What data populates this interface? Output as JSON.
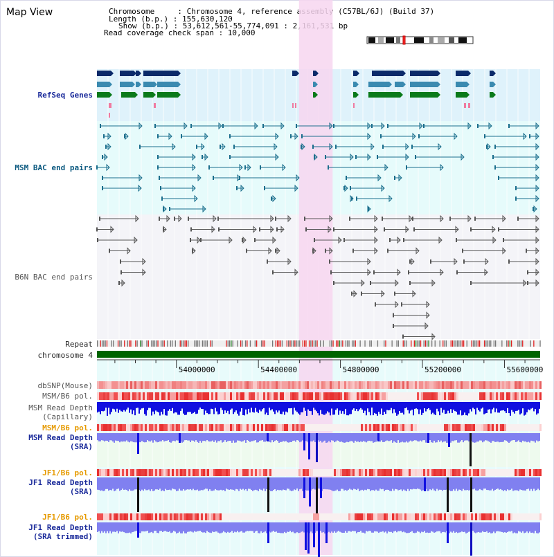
{
  "header": {
    "view_title": "Map View",
    "chromosome_line": "Chromosome     : Chromosome 4, reference assembly (C57BL/6J) (Build 37)",
    "length_line": "Length (b.p.) : 155,630,120",
    "show_line": "Show (b.p.) : 53,612,561-55,774,091 : 2,161,531 bp",
    "coverage_line": "Read coverage check span : 10,000"
  },
  "tracks": {
    "refseq": "RefSeq Genes",
    "msm_bac": "MSM BAC end pairs",
    "b6n_bac": "B6N BAC end pairs",
    "repeat": "Repeat",
    "chromosome": "chromosome 4",
    "dbsnp": "dbSNP(Mouse)",
    "msm_b6_pol_1": "MSM/B6 pol.",
    "msm_depth_cap_1": "MSM Read Depth",
    "msm_depth_cap_2": "(Capillary)",
    "msm_b6_pol_2": "MSM/B6 pol.",
    "msm_depth_sra_1": "MSM Read Depth",
    "msm_depth_sra_2": "(SRA)",
    "jf1_b6_pol_1": "JF1/B6 pol.",
    "jf1_depth_sra_1": "JF1 Read Depth",
    "jf1_depth_sra_2": "(SRA)",
    "jf1_b6_pol_2": "JF1/B6 pol.",
    "jf1_depth_trim_1": "JF1 Read Depth",
    "jf1_depth_trim_2": "(SRA trimmed)"
  },
  "axis": {
    "ticks": [
      {
        "label": "54000000",
        "value": 54000000
      },
      {
        "label": "54400000",
        "value": 54400000
      },
      {
        "label": "54800000",
        "value": 54800000
      },
      {
        "label": "55200000",
        "value": 55200000
      },
      {
        "label": "55600000",
        "value": 55600000
      }
    ],
    "range": [
      53612561,
      55774091
    ]
  },
  "highlight": {
    "start": 54598000,
    "end": 54762000
  },
  "colors": {
    "refseq_bg": "#dff2fb",
    "bac_bg": "#e6fbfb",
    "msm_bac": "#1a6e8c",
    "b6n_bac": "#555555",
    "highlight": "#f7d6f0",
    "chromosome": "#006400",
    "depth_blue": "#1010e0",
    "depth_light": "#8080f0",
    "pol_red": "#e83030",
    "label_orange": "#e69a00"
  }
}
